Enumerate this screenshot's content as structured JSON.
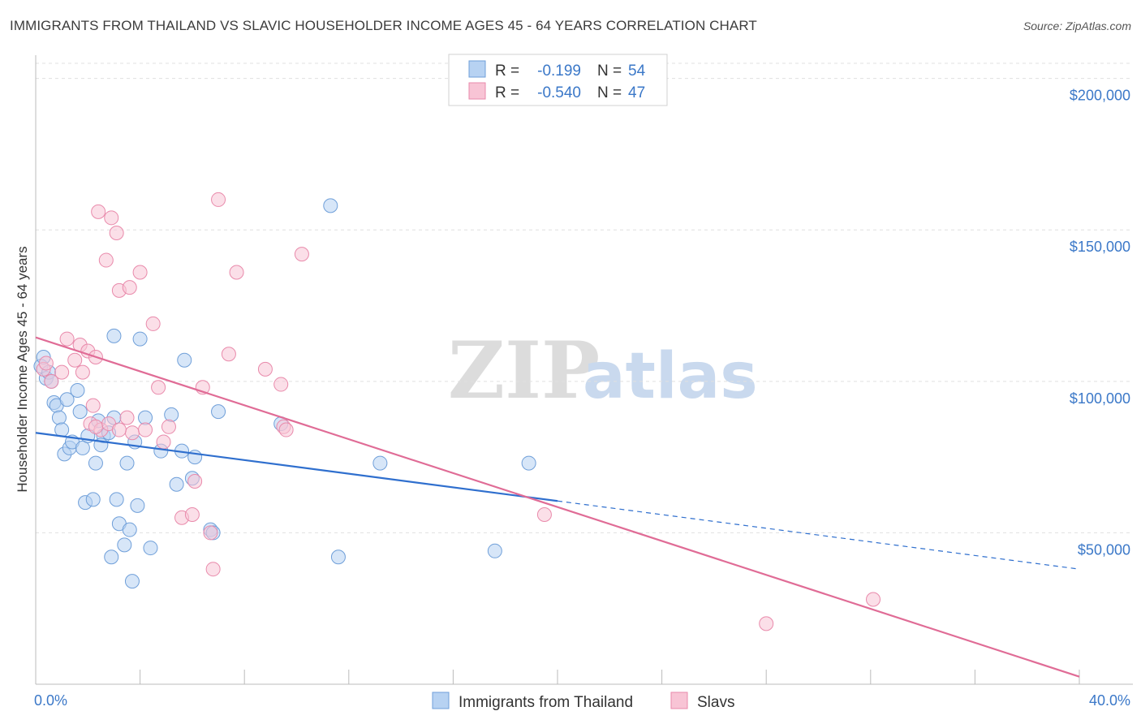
{
  "title": "IMMIGRANTS FROM THAILAND VS SLAVIC HOUSEHOLDER INCOME AGES 45 - 64 YEARS CORRELATION CHART",
  "source": "Source: ZipAtlas.com",
  "watermark": {
    "zip": "ZIP",
    "atlas": "atlas"
  },
  "legend": {
    "r_label": "R =",
    "n_label": "N =",
    "entries": [
      {
        "r": "-0.199",
        "n": "54",
        "fill": "#b7d2f2",
        "stroke": "#6f9fd9"
      },
      {
        "r": "-0.540",
        "n": "47",
        "fill": "#f8c4d5",
        "stroke": "#e98aab"
      }
    ]
  },
  "chart_data": {
    "type": "scatter",
    "title": "IMMIGRANTS FROM THAILAND VS SLAVIC HOUSEHOLDER INCOME AGES 45 - 64 YEARS CORRELATION CHART",
    "xlabel": "",
    "ylabel": "Householder Income Ages 45 - 64 years",
    "xlim": [
      0,
      40
    ],
    "ylim": [
      0,
      205000
    ],
    "x_tick_labels": [
      "0.0%",
      "40.0%"
    ],
    "y_ticks": [
      {
        "value": 50000,
        "label": "$50,000"
      },
      {
        "value": 100000,
        "label": "$100,000"
      },
      {
        "value": 150000,
        "label": "$150,000"
      },
      {
        "value": 200000,
        "label": "$200,000"
      }
    ],
    "grid": true,
    "series": [
      {
        "name": "Immigrants from Thailand",
        "color": "#6f9fd9",
        "fill": "#b7d2f2",
        "line_color": "#2f6fce",
        "trend": {
          "x0": 0,
          "y0": 83000,
          "x1": 20,
          "y1": 60500,
          "x_dashed_end": 40,
          "y_dashed_end": 38000
        },
        "points": [
          [
            0.2,
            105000
          ],
          [
            0.3,
            108000
          ],
          [
            0.4,
            101000
          ],
          [
            0.5,
            103000
          ],
          [
            0.6,
            100000
          ],
          [
            0.7,
            93000
          ],
          [
            0.8,
            92000
          ],
          [
            0.9,
            88000
          ],
          [
            1.0,
            84000
          ],
          [
            1.1,
            76000
          ],
          [
            1.2,
            94000
          ],
          [
            1.3,
            78000
          ],
          [
            1.4,
            80000
          ],
          [
            1.6,
            97000
          ],
          [
            1.7,
            90000
          ],
          [
            1.8,
            78000
          ],
          [
            1.9,
            60000
          ],
          [
            2.0,
            82000
          ],
          [
            2.2,
            61000
          ],
          [
            2.3,
            73000
          ],
          [
            2.4,
            87000
          ],
          [
            2.6,
            82000
          ],
          [
            2.8,
            83000
          ],
          [
            2.9,
            42000
          ],
          [
            3.0,
            88000
          ],
          [
            3.1,
            61000
          ],
          [
            3.2,
            53000
          ],
          [
            3.4,
            46000
          ],
          [
            3.5,
            73000
          ],
          [
            3.6,
            51000
          ],
          [
            3.7,
            34000
          ],
          [
            3.8,
            80000
          ],
          [
            3.9,
            59000
          ],
          [
            4.0,
            114000
          ],
          [
            4.4,
            45000
          ],
          [
            4.8,
            77000
          ],
          [
            5.2,
            89000
          ],
          [
            5.4,
            66000
          ],
          [
            5.6,
            77000
          ],
          [
            5.7,
            107000
          ],
          [
            6.0,
            68000
          ],
          [
            6.1,
            75000
          ],
          [
            3.0,
            115000
          ],
          [
            6.7,
            51000
          ],
          [
            6.8,
            50000
          ],
          [
            7.0,
            90000
          ],
          [
            9.4,
            86000
          ],
          [
            11.3,
            158000
          ],
          [
            11.6,
            42000
          ],
          [
            13.2,
            73000
          ],
          [
            17.6,
            44000
          ],
          [
            18.9,
            73000
          ],
          [
            4.2,
            88000
          ],
          [
            2.5,
            79000
          ]
        ]
      },
      {
        "name": "Slavs",
        "color": "#e98aab",
        "fill": "#f8c4d5",
        "line_color": "#e06c96",
        "trend": {
          "x0": 0,
          "y0": 114500,
          "x1": 40,
          "y1": 2500
        },
        "points": [
          [
            0.3,
            104000
          ],
          [
            0.4,
            106000
          ],
          [
            0.6,
            100000
          ],
          [
            1.0,
            103000
          ],
          [
            1.2,
            114000
          ],
          [
            1.5,
            107000
          ],
          [
            1.7,
            112000
          ],
          [
            1.8,
            103000
          ],
          [
            2.0,
            110000
          ],
          [
            2.1,
            86000
          ],
          [
            2.2,
            92000
          ],
          [
            2.3,
            108000
          ],
          [
            2.4,
            156000
          ],
          [
            2.5,
            84000
          ],
          [
            2.7,
            140000
          ],
          [
            2.8,
            86000
          ],
          [
            2.9,
            154000
          ],
          [
            3.1,
            149000
          ],
          [
            3.2,
            130000
          ],
          [
            3.5,
            88000
          ],
          [
            3.6,
            131000
          ],
          [
            3.7,
            83000
          ],
          [
            4.0,
            136000
          ],
          [
            4.2,
            84000
          ],
          [
            4.5,
            119000
          ],
          [
            4.7,
            98000
          ],
          [
            4.9,
            80000
          ],
          [
            5.1,
            85000
          ],
          [
            5.6,
            55000
          ],
          [
            6.0,
            56000
          ],
          [
            6.1,
            67000
          ],
          [
            6.4,
            98000
          ],
          [
            6.7,
            50000
          ],
          [
            6.8,
            38000
          ],
          [
            7.0,
            160000
          ],
          [
            7.4,
            109000
          ],
          [
            7.7,
            136000
          ],
          [
            8.8,
            104000
          ],
          [
            9.4,
            99000
          ],
          [
            9.5,
            85000
          ],
          [
            9.6,
            84000
          ],
          [
            10.2,
            142000
          ],
          [
            19.5,
            56000
          ],
          [
            28.0,
            20000
          ],
          [
            32.1,
            28000
          ],
          [
            3.2,
            84000
          ],
          [
            2.3,
            85000
          ]
        ]
      }
    ]
  }
}
